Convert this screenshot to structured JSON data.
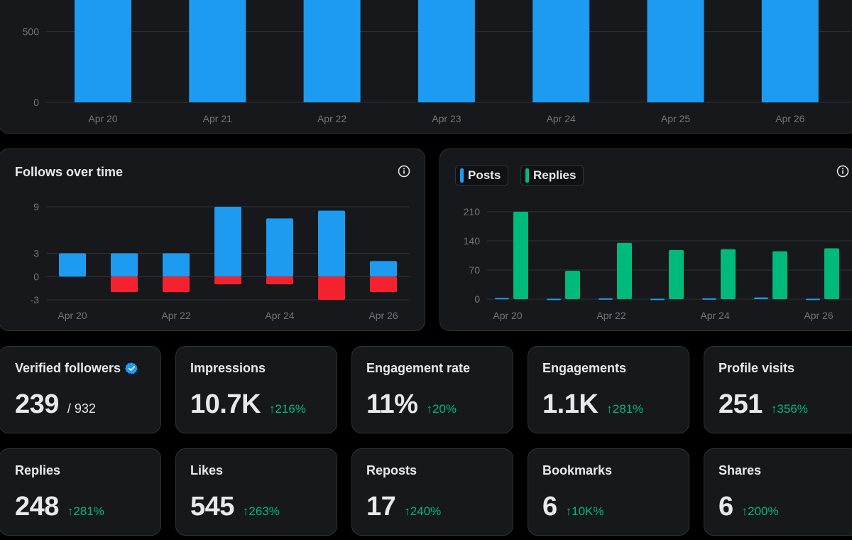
{
  "colors": {
    "blue": "#1d9bf0",
    "green": "#00ba7c",
    "red": "#f4212e",
    "grid": "#2f3336",
    "tick": "#71767b"
  },
  "impressions_chart": {
    "chart_data": {
      "type": "bar",
      "categories": [
        "Apr 20",
        "Apr 21",
        "Apr 22",
        "Apr 23",
        "Apr 24",
        "Apr 25",
        "Apr 26"
      ],
      "values": [
        1000,
        1000,
        1000,
        1000,
        1000,
        1000,
        1000
      ],
      "y_ticks": [
        0,
        500
      ],
      "ylim": [
        0,
        820
      ],
      "grid": true
    }
  },
  "follows_chart": {
    "title": "Follows over time",
    "info_icon": "info-icon",
    "chart_data": {
      "type": "bar",
      "categories": [
        "Apr 20",
        "Apr 21",
        "Apr 22",
        "Apr 23",
        "Apr 24",
        "Apr 25",
        "Apr 26"
      ],
      "tick_labels": [
        "Apr 20",
        "",
        "Apr 22",
        "",
        "Apr 24",
        "",
        "Apr 26"
      ],
      "series": [
        {
          "color": "#1d9bf0",
          "values": [
            3,
            3,
            3,
            9,
            7.5,
            8.5,
            2
          ]
        },
        {
          "color": "#f4212e",
          "values": [
            0,
            -2,
            -2,
            -1,
            -1,
            -3,
            -2
          ]
        }
      ],
      "y_ticks": [
        -3,
        0,
        3,
        9
      ],
      "ylim": [
        -3,
        9
      ],
      "grid": true,
      "stacked": true
    }
  },
  "posts_chart": {
    "info_icon": "info-icon",
    "legend": [
      {
        "label": "Posts",
        "color": "#1d9bf0"
      },
      {
        "label": "Replies",
        "color": "#00ba7c"
      }
    ],
    "chart_data": {
      "type": "bar",
      "categories": [
        "Apr 20",
        "Apr 21",
        "Apr 22",
        "Apr 23",
        "Apr 24",
        "Apr 25",
        "Apr 26"
      ],
      "tick_labels": [
        "Apr 20",
        "",
        "Apr 22",
        "",
        "Apr 24",
        "",
        "Apr 26"
      ],
      "series": [
        {
          "name": "Posts",
          "color": "#1d9bf0",
          "values": [
            3,
            1,
            2,
            1,
            2,
            4,
            1
          ]
        },
        {
          "name": "Replies",
          "color": "#00ba7c",
          "values": [
            210,
            68,
            135,
            118,
            120,
            115,
            122
          ]
        }
      ],
      "y_ticks": [
        0,
        70,
        140,
        210
      ],
      "ylim": [
        0,
        210
      ],
      "grid": true
    }
  },
  "stats_row1": [
    {
      "label": "Verified followers",
      "value": "239",
      "total": "/ 932",
      "verified_icon": "verified-badge-icon"
    },
    {
      "label": "Impressions",
      "value": "10.7K",
      "change": "↑216%"
    },
    {
      "label": "Engagement rate",
      "value": "11%",
      "change": "↑20%"
    },
    {
      "label": "Engagements",
      "value": "1.1K",
      "change": "↑281%"
    },
    {
      "label": "Profile visits",
      "value": "251",
      "change": "↑356%"
    }
  ],
  "stats_row2": [
    {
      "label": "Replies",
      "value": "248",
      "change": "↑281%"
    },
    {
      "label": "Likes",
      "value": "545",
      "change": "↑263%"
    },
    {
      "label": "Reposts",
      "value": "17",
      "change": "↑240%"
    },
    {
      "label": "Bookmarks",
      "value": "6",
      "change": "↑10K%"
    },
    {
      "label": "Shares",
      "value": "6",
      "change": "↑200%"
    }
  ]
}
